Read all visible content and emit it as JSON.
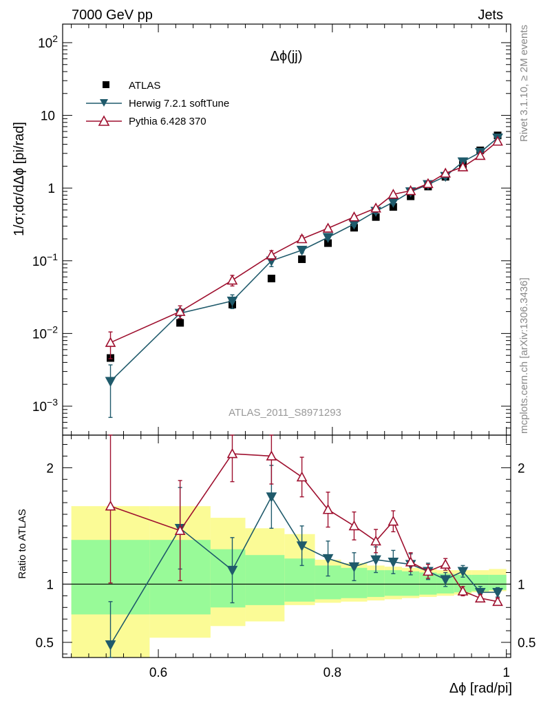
{
  "header": {
    "energy": "7000 GeV pp",
    "process": "Jets"
  },
  "side_labels": {
    "rivet": "Rivet 3.1.10, ≥ 2M events",
    "mcplots": "mcplots.cern.ch [arXiv:1306.3436]"
  },
  "colors": {
    "data": "#000000",
    "herwig": "#1f5a6b",
    "pythia": "#9e0f2e",
    "band_inner": "#98fa98",
    "band_outer": "#fbfb96"
  },
  "chart_data": [
    {
      "type": "scatter",
      "title": "Δϕ(jj)",
      "analysis": "ATLAS_2011_S8971293",
      "xlabel": "Δϕ [rad/pi]",
      "ylabel": "1/σ;dσ/dΔϕ [pi/rad]",
      "xlim": [
        0.49,
        1.005
      ],
      "ylim": [
        0.0004,
        180
      ],
      "yscale": "log",
      "y_ticks": [
        {
          "v": 0.001,
          "b": "10",
          "e": "−3"
        },
        {
          "v": 0.01,
          "b": "10",
          "e": "−2"
        },
        {
          "v": 0.1,
          "b": "10",
          "e": "−1"
        },
        {
          "v": 1,
          "b": "1",
          "e": ""
        },
        {
          "v": 10,
          "b": "10",
          "e": ""
        },
        {
          "v": 100,
          "b": "10",
          "e": "2"
        }
      ],
      "legend": {
        "placement": "top-left",
        "entries": [
          "ATLAS",
          "Herwig 7.2.1 softTune",
          "Pythia 6.428 370"
        ]
      },
      "series": [
        {
          "name": "ATLAS",
          "marker": "square",
          "x": [
            0.545,
            0.625,
            0.685,
            0.73,
            0.765,
            0.795,
            0.825,
            0.85,
            0.87,
            0.89,
            0.91,
            0.93,
            0.95,
            0.97,
            0.99
          ],
          "y": [
            0.0046,
            0.014,
            0.025,
            0.057,
            0.105,
            0.175,
            0.285,
            0.4,
            0.55,
            0.77,
            1.05,
            1.43,
            2.1,
            3.3,
            5.3
          ]
        },
        {
          "name": "Herwig 7.2.1 softTune",
          "marker": "triangle-down",
          "x": [
            0.545,
            0.625,
            0.685,
            0.73,
            0.765,
            0.795,
            0.825,
            0.85,
            0.87,
            0.89,
            0.91,
            0.93,
            0.95,
            0.97,
            0.99
          ],
          "y": [
            0.0022,
            0.019,
            0.028,
            0.1,
            0.14,
            0.21,
            0.32,
            0.48,
            0.64,
            0.89,
            1.12,
            1.45,
            2.3,
            3.1,
            4.9
          ],
          "err": [
            0.0015,
            0.003,
            0.006,
            0.017,
            0.012,
            0.015,
            0.025,
            0.035,
            0.04,
            0.05,
            0.06,
            0.08,
            0.1,
            0.15,
            0.2
          ]
        },
        {
          "name": "Pythia 6.428 370",
          "marker": "triangle-up",
          "x": [
            0.545,
            0.625,
            0.685,
            0.73,
            0.765,
            0.795,
            0.825,
            0.85,
            0.87,
            0.89,
            0.91,
            0.93,
            0.95,
            0.97,
            0.99
          ],
          "y": [
            0.0075,
            0.02,
            0.054,
            0.12,
            0.2,
            0.28,
            0.4,
            0.53,
            0.82,
            0.92,
            1.15,
            1.6,
            1.95,
            2.8,
            4.4
          ],
          "err": [
            0.003,
            0.004,
            0.009,
            0.018,
            0.02,
            0.02,
            0.025,
            0.03,
            0.045,
            0.05,
            0.06,
            0.08,
            0.1,
            0.15,
            0.2
          ]
        }
      ]
    },
    {
      "type": "scatter",
      "ylabel": "Ratio to ATLAS",
      "xlabel": "Δϕ [rad/pi]",
      "xlim": [
        0.49,
        1.005
      ],
      "ylim": [
        0.37,
        2.28
      ],
      "x_ticks": [
        0.6,
        0.8,
        1
      ],
      "x_tick_labels": [
        "0.6",
        "0.8",
        "1"
      ],
      "y_ticks": [
        0.5,
        1,
        2
      ],
      "y_tick_labels": [
        "0.5",
        "1",
        "2"
      ],
      "bands": {
        "edges": [
          0.5,
          0.59,
          0.66,
          0.7,
          0.745,
          0.78,
          0.81,
          0.84,
          0.86,
          0.88,
          0.9,
          0.92,
          0.94,
          0.96,
          0.98,
          1.0
        ],
        "inner_lo": [
          0.74,
          0.74,
          0.8,
          0.82,
          0.85,
          0.87,
          0.88,
          0.89,
          0.9,
          0.9,
          0.91,
          0.92,
          0.93,
          0.94,
          0.95
        ],
        "inner_hi": [
          1.38,
          1.38,
          1.3,
          1.25,
          1.22,
          1.16,
          1.14,
          1.12,
          1.12,
          1.11,
          1.1,
          1.09,
          1.08,
          1.08,
          1.08
        ],
        "outer_lo": [
          0.34,
          0.54,
          0.64,
          0.68,
          0.82,
          0.84,
          0.85,
          0.86,
          0.87,
          0.88,
          0.89,
          0.9,
          0.91,
          0.93,
          0.94
        ],
        "outer_hi": [
          1.67,
          1.67,
          1.57,
          1.48,
          1.43,
          1.21,
          1.18,
          1.16,
          1.15,
          1.14,
          1.13,
          1.12,
          1.12,
          1.12,
          1.13
        ]
      },
      "series": [
        {
          "name": "Herwig 7.2.1 softTune",
          "marker": "triangle-down",
          "x": [
            0.545,
            0.625,
            0.685,
            0.73,
            0.765,
            0.795,
            0.825,
            0.85,
            0.87,
            0.89,
            0.91,
            0.93,
            0.95,
            0.97,
            0.99
          ],
          "y": [
            0.48,
            1.48,
            1.12,
            1.75,
            1.33,
            1.22,
            1.15,
            1.21,
            1.19,
            1.17,
            1.11,
            1.04,
            1.11,
            0.93,
            0.93
          ],
          "err": [
            0.37,
            0.35,
            0.28,
            0.27,
            0.17,
            0.15,
            0.12,
            0.11,
            0.1,
            0.09,
            0.07,
            0.06,
            0.05,
            0.05,
            0.04
          ]
        },
        {
          "name": "Pythia 6.428 370",
          "marker": "triangle-up",
          "x": [
            0.545,
            0.625,
            0.685,
            0.73,
            0.765,
            0.795,
            0.825,
            0.85,
            0.87,
            0.89,
            0.91,
            0.93,
            0.95,
            0.97,
            0.99
          ],
          "y": [
            1.67,
            1.46,
            2.12,
            2.1,
            1.92,
            1.64,
            1.5,
            1.37,
            1.54,
            1.19,
            1.11,
            1.17,
            0.94,
            0.88,
            0.85
          ],
          "err": [
            0.66,
            0.43,
            0.24,
            0.24,
            0.17,
            0.15,
            0.12,
            0.1,
            0.09,
            0.08,
            0.06,
            0.05,
            0.04,
            0.03,
            0.03
          ]
        }
      ]
    }
  ]
}
